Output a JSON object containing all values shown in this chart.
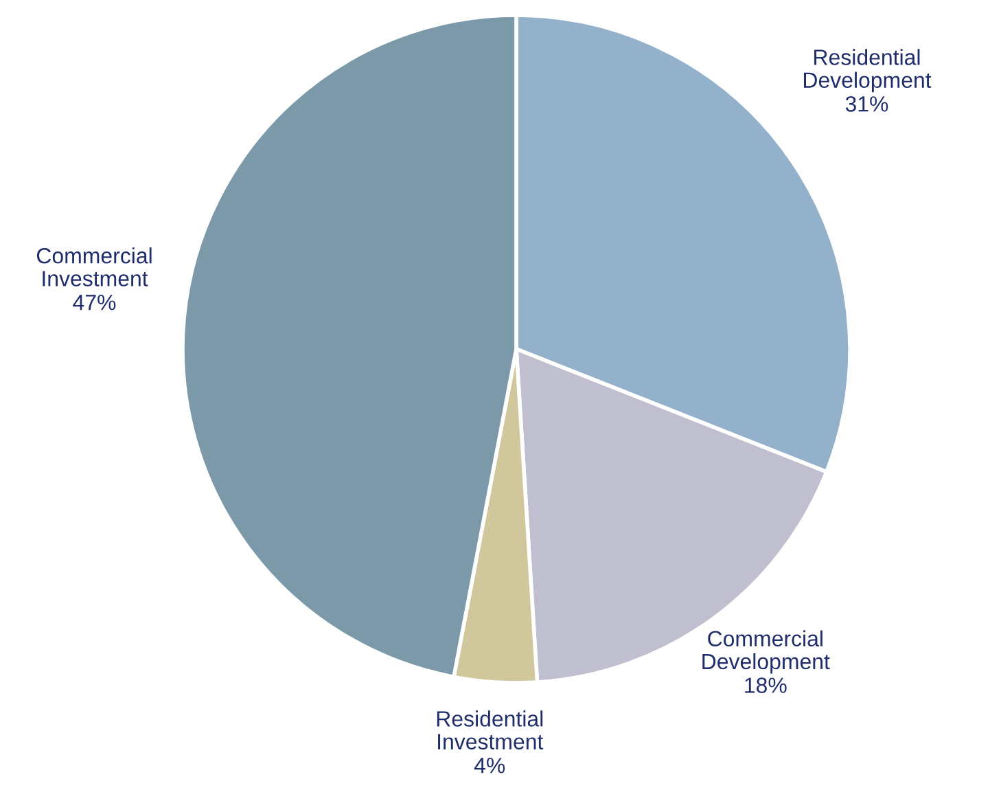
{
  "chart_data": {
    "type": "pie",
    "categories": [
      "Residential Development",
      "Commercial Development",
      "Residential Investment",
      "Commercial Investment"
    ],
    "values": [
      31,
      18,
      4,
      47
    ],
    "value_labels": [
      "31%",
      "18%",
      "4%",
      "47%"
    ],
    "colors": [
      "#94b1cc",
      "#c0bfd0",
      "#d0c89c",
      "#7b99a8"
    ]
  }
}
